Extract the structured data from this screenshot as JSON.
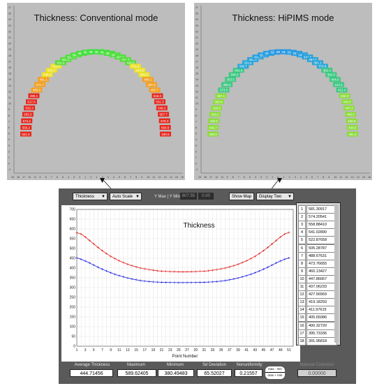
{
  "panels": {
    "left": {
      "title": "Thickness: Conventional mode",
      "color_scale": "red-orange-yellow-green",
      "sample_labels": [
        "521.5",
        "556.2",
        "574.2",
        "565.0",
        "532.3",
        "517.0",
        "499.1",
        "485.0",
        "471.7",
        "461.1",
        "445.0",
        "433.7",
        "420.1",
        "411.5",
        "400.9",
        "392.6",
        "386.7",
        "383.0",
        "382.0",
        "381.5",
        "382.4",
        "384.1",
        "389.3",
        "395.8",
        "402.0",
        "411.0",
        "420.5",
        "431.6",
        "443.0",
        "456.9",
        "468.1",
        "482.3",
        "497.7",
        "516.0",
        "531.3",
        "548.2",
        "567.7",
        "578.3",
        "560.8",
        "530.6"
      ]
    },
    "right": {
      "title": "Thickness: HiPIMS mode",
      "color_scale": "blue-cyan-green",
      "sample_labels": [
        "438.2",
        "442.7",
        "432.6",
        "428.2",
        "418.6",
        "399.8",
        "387.1",
        "373.9",
        "365.0",
        "353.5",
        "348.5",
        "341.0",
        "336.7",
        "333.6",
        "331.4",
        "330.3",
        "329.6",
        "329.3",
        "329.8",
        "330.5",
        "332.1",
        "334.4",
        "337.8",
        "342.0",
        "347.8",
        "353.0",
        "361.1",
        "370.8",
        "382.4",
        "392.9",
        "404.0",
        "414.3",
        "421.4",
        "432.0",
        "440.5",
        "447.3",
        "445.0",
        "436.9",
        "430.0",
        "451.0"
      ]
    },
    "axis_x_ticks": [
      "15",
      "16",
      "17",
      "12",
      "11",
      "9",
      "8",
      "7",
      "6",
      "5",
      "4",
      "3",
      "2",
      "1",
      "0",
      "1",
      "2",
      "3",
      "4",
      "5",
      "6",
      "7",
      "8",
      "9",
      "10",
      "11",
      "12",
      "13",
      "14",
      "15",
      "16"
    ],
    "axis_y_ticks": [
      "27",
      "25",
      "24",
      "23",
      "22",
      "21",
      "20",
      "19",
      "18",
      "17",
      "16",
      "15",
      "14",
      "13",
      "12",
      "11",
      "10",
      "9",
      "8",
      "7",
      "6",
      "5",
      "4",
      "3",
      "2",
      "1",
      "0",
      "-1"
    ]
  },
  "simulator": {
    "quantity_select": "Thickness",
    "scale_select": "Auto Scale",
    "ymax_ymin_label": "Y Max | Y Min",
    "ymax_value": "607.55",
    "ymin_value": "0.00",
    "show_map_label": "Show Map",
    "display_select": "Display Two",
    "chart_title": "Thickness",
    "table": [
      {
        "i": "1",
        "v": "581.30917"
      },
      {
        "i": "2",
        "v": "574.20541"
      },
      {
        "i": "3",
        "v": "558.88410"
      },
      {
        "i": "4",
        "v": "541.02890"
      },
      {
        "i": "5",
        "v": "522.87658"
      },
      {
        "i": "6",
        "v": "505.28787"
      },
      {
        "i": "7",
        "v": "488.67631"
      },
      {
        "i": "8",
        "v": "473.76655"
      },
      {
        "i": "9",
        "v": "460.13427"
      },
      {
        "i": "10",
        "v": "447.86667"
      },
      {
        "i": "11",
        "v": "437.06233"
      },
      {
        "i": "12",
        "v": "427.56569"
      },
      {
        "i": "13",
        "v": "419.18293"
      },
      {
        "i": "14",
        "v": "411.97615"
      },
      {
        "i": "15",
        "v": "405.65086"
      },
      {
        "i": "16",
        "v": "400.32720"
      },
      {
        "i": "17",
        "v": "395.73336"
      },
      {
        "i": "18",
        "v": "391.95818"
      }
    ],
    "stats": {
      "avg_label": "Average Thickness",
      "avg_value": "444.71456",
      "max_label": "Maximum",
      "max_value": "589.62405",
      "min_label": "Minimum",
      "min_value": "380.49483",
      "sd_label": "Sd Deviation",
      "sd_value": "65.52027",
      "nonuni_label": "Nonuniformity",
      "nonuni_value": "0.21557",
      "formula_top": "max - min",
      "formula_bottom": "max + min",
      "material_label": "Material Collection",
      "material_value": "0.00000"
    }
  },
  "chart_data": {
    "type": "line",
    "title": "Thickness",
    "xlabel": "Point Number",
    "ylabel": "",
    "xlim": [
      1,
      52
    ],
    "ylim": [
      0,
      700
    ],
    "x_ticks": [
      1,
      3,
      5,
      7,
      9,
      11,
      13,
      15,
      17,
      19,
      21,
      23,
      25,
      27,
      29,
      31,
      33,
      35,
      37,
      39,
      41,
      43,
      45,
      47,
      49,
      51
    ],
    "y_ticks": [
      0,
      50,
      100,
      150,
      200,
      250,
      300,
      350,
      400,
      450,
      500,
      550,
      600,
      650,
      700
    ],
    "grid": true,
    "series": [
      {
        "color": "#e02020",
        "values": [
          581,
          574,
          559,
          541,
          523,
          505,
          489,
          474,
          460,
          448,
          437,
          428,
          419,
          412,
          406,
          400,
          396,
          392,
          389,
          386,
          384,
          383,
          382,
          381.5,
          381,
          380.5,
          381,
          381.5,
          382,
          383,
          384,
          386,
          389,
          392,
          396,
          400,
          406,
          412,
          419,
          428,
          437,
          448,
          460,
          474,
          489,
          505,
          523,
          541,
          559,
          574,
          582
        ]
      },
      {
        "color": "#2020e0",
        "values": [
          452,
          445,
          436,
          426,
          415,
          404,
          394,
          385,
          376,
          368,
          361,
          355,
          349,
          344,
          340,
          336,
          333,
          331,
          329,
          328,
          327,
          326.5,
          326,
          325.8,
          325.6,
          325.5,
          325.6,
          325.8,
          326,
          326.5,
          327,
          328,
          329,
          331,
          333,
          336,
          340,
          344,
          349,
          355,
          361,
          368,
          376,
          385,
          394,
          404,
          415,
          426,
          436,
          445,
          452
        ]
      }
    ]
  }
}
